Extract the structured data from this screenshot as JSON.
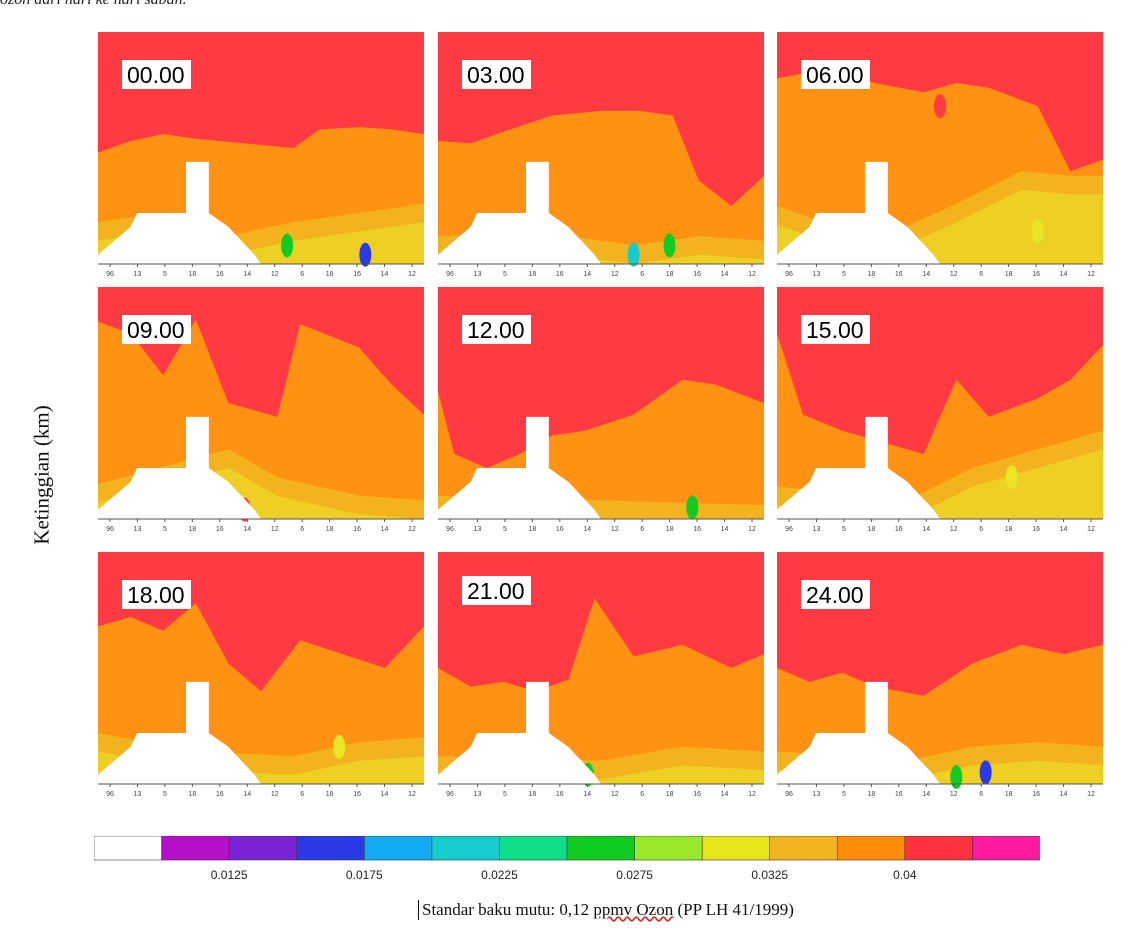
{
  "figure": {
    "top_caption": "ozon dari hari ke hari sabah.",
    "ylabel": "Ketinggian (km)",
    "footnote_prefix": "Standar baku mutu: 0,12 ",
    "footnote_unit": "ppmv Ozon",
    "footnote_suffix": " (PP LH 41/1999)"
  },
  "chart_data": {
    "type": "heatmap",
    "variable": "ozone",
    "ylabel": "Ketinggian (km)",
    "panels": [
      {
        "label": "00.00"
      },
      {
        "label": "03.00"
      },
      {
        "label": "06.00"
      },
      {
        "label": "09.00"
      },
      {
        "label": "12.00"
      },
      {
        "label": "15.00"
      },
      {
        "label": "18.00"
      },
      {
        "label": "21.00"
      },
      {
        "label": "24.00"
      }
    ],
    "x_tick_labels": [
      "96",
      "13",
      "5",
      "18",
      "16",
      "14",
      "12",
      "6",
      "18",
      "16",
      "14",
      "12"
    ],
    "colorbar": {
      "levels": [
        0.01,
        0.0125,
        0.015,
        0.0175,
        0.02,
        0.0225,
        0.025,
        0.0275,
        0.03,
        0.0325,
        0.035,
        0.04,
        0.045
      ],
      "colors": [
        "#ffffff",
        "#b510c8",
        "#7a22d6",
        "#2a3ae8",
        "#12aaf0",
        "#14cccc",
        "#10dd88",
        "#10cc22",
        "#9ae82a",
        "#e6e61a",
        "#f0b41e",
        "#ff8c0a",
        "#ff3340",
        "#ff1aa0"
      ],
      "tick_labels": [
        "0.0125",
        "0.0175",
        "0.0225",
        "0.0275",
        "0.0325",
        "0.04"
      ]
    }
  }
}
